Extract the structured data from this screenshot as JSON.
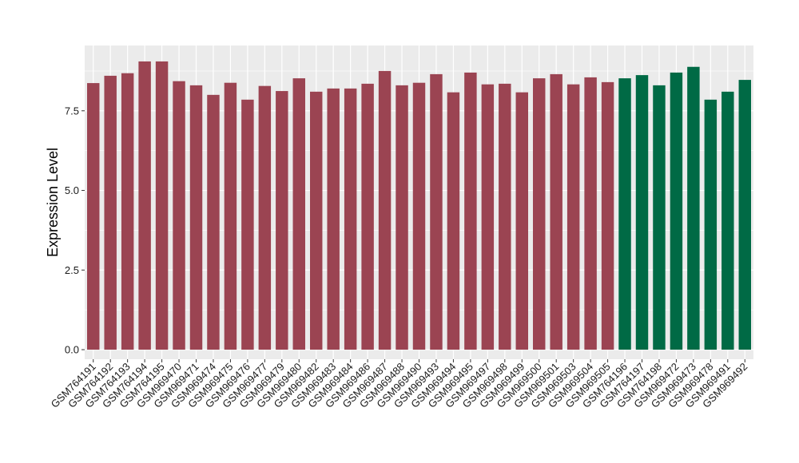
{
  "chart_data": {
    "type": "bar",
    "title": "",
    "xlabel": "",
    "ylabel": "Expression Level",
    "ylim": [
      -0.3,
      9.55
    ],
    "yticks": [
      "0.0",
      "2.5",
      "5.0",
      "7.5"
    ],
    "grid": true,
    "legend": "none",
    "colors": {
      "group1": "#9b4452",
      "group2": "#006a45",
      "panel": "#ebebeb",
      "grid": "#ffffff"
    },
    "categories": [
      "GSM764191",
      "GSM764192",
      "GSM764193",
      "GSM764194",
      "GSM764195",
      "GSM969470",
      "GSM969471",
      "GSM969474",
      "GSM969475",
      "GSM969476",
      "GSM969477",
      "GSM969479",
      "GSM969480",
      "GSM969482",
      "GSM969483",
      "GSM969484",
      "GSM969486",
      "GSM969487",
      "GSM969488",
      "GSM969490",
      "GSM969493",
      "GSM969494",
      "GSM969495",
      "GSM969497",
      "GSM969498",
      "GSM969499",
      "GSM969500",
      "GSM969501",
      "GSM969503",
      "GSM969504",
      "GSM969505",
      "GSM764196",
      "GSM764197",
      "GSM764198",
      "GSM969472",
      "GSM969473",
      "GSM969478",
      "GSM969491",
      "GSM969492"
    ],
    "values": [
      8.37,
      8.6,
      8.68,
      9.05,
      9.05,
      8.43,
      8.3,
      8.0,
      8.38,
      7.85,
      8.28,
      8.12,
      8.52,
      8.1,
      8.2,
      8.2,
      8.35,
      8.75,
      8.3,
      8.38,
      8.65,
      8.08,
      8.7,
      8.33,
      8.35,
      8.08,
      8.52,
      8.65,
      8.33,
      8.55,
      8.4,
      8.52,
      8.62,
      8.3,
      8.7,
      8.88,
      7.85,
      8.1,
      8.47
    ],
    "groups": [
      1,
      1,
      1,
      1,
      1,
      1,
      1,
      1,
      1,
      1,
      1,
      1,
      1,
      1,
      1,
      1,
      1,
      1,
      1,
      1,
      1,
      1,
      1,
      1,
      1,
      1,
      1,
      1,
      1,
      1,
      1,
      2,
      2,
      2,
      2,
      2,
      2,
      2,
      2
    ]
  }
}
